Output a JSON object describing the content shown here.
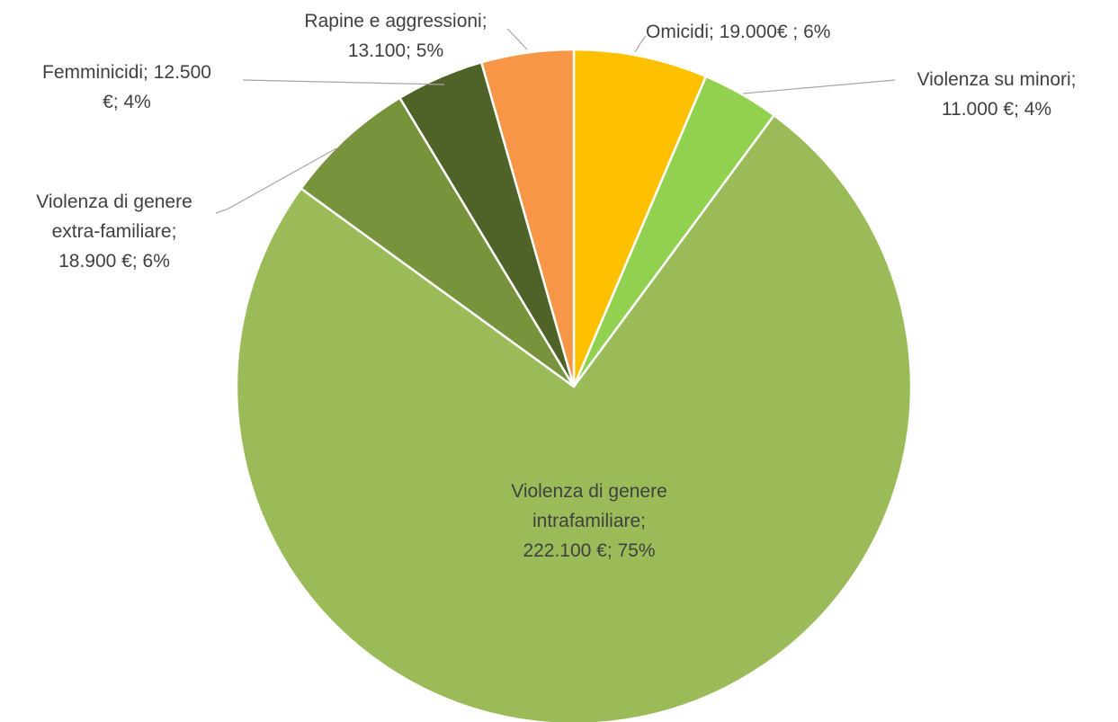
{
  "chart_data": {
    "type": "pie",
    "title": "",
    "slices": [
      {
        "name": "Omicidi",
        "value": 19000,
        "percent": 6,
        "color": "#FFC000",
        "label_lines": [
          "Omicidi; 19.000€ ; 6%"
        ]
      },
      {
        "name": "Violenza su minori",
        "value": 11000,
        "percent": 4,
        "color": "#92D050",
        "label_lines": [
          "Violenza su minori;",
          "11.000 €; 4%"
        ]
      },
      {
        "name": "Violenza di genere intrafamiliare",
        "value": 222100,
        "percent": 75,
        "color": "#9BBB59",
        "label_lines": [
          "Violenza di genere",
          "intrafamiliare;",
          "222.100 €; 75%"
        ]
      },
      {
        "name": "Violenza di genere extra-familiare",
        "value": 18900,
        "percent": 6,
        "color": "#77933C",
        "label_lines": [
          "Violenza di genere",
          "extra-familiare;",
          "18.900 €; 6%"
        ]
      },
      {
        "name": "Femminicidi",
        "value": 12500,
        "percent": 4,
        "color": "#4F6228",
        "label_lines": [
          "Femminicidi; 12.500",
          "€; 4%"
        ]
      },
      {
        "name": "Rapine e aggressioni",
        "value": 13100,
        "percent": 5,
        "color": "#F79646",
        "label_lines": [
          "Rapine e aggressioni;",
          "13.100; 5%"
        ]
      }
    ]
  }
}
